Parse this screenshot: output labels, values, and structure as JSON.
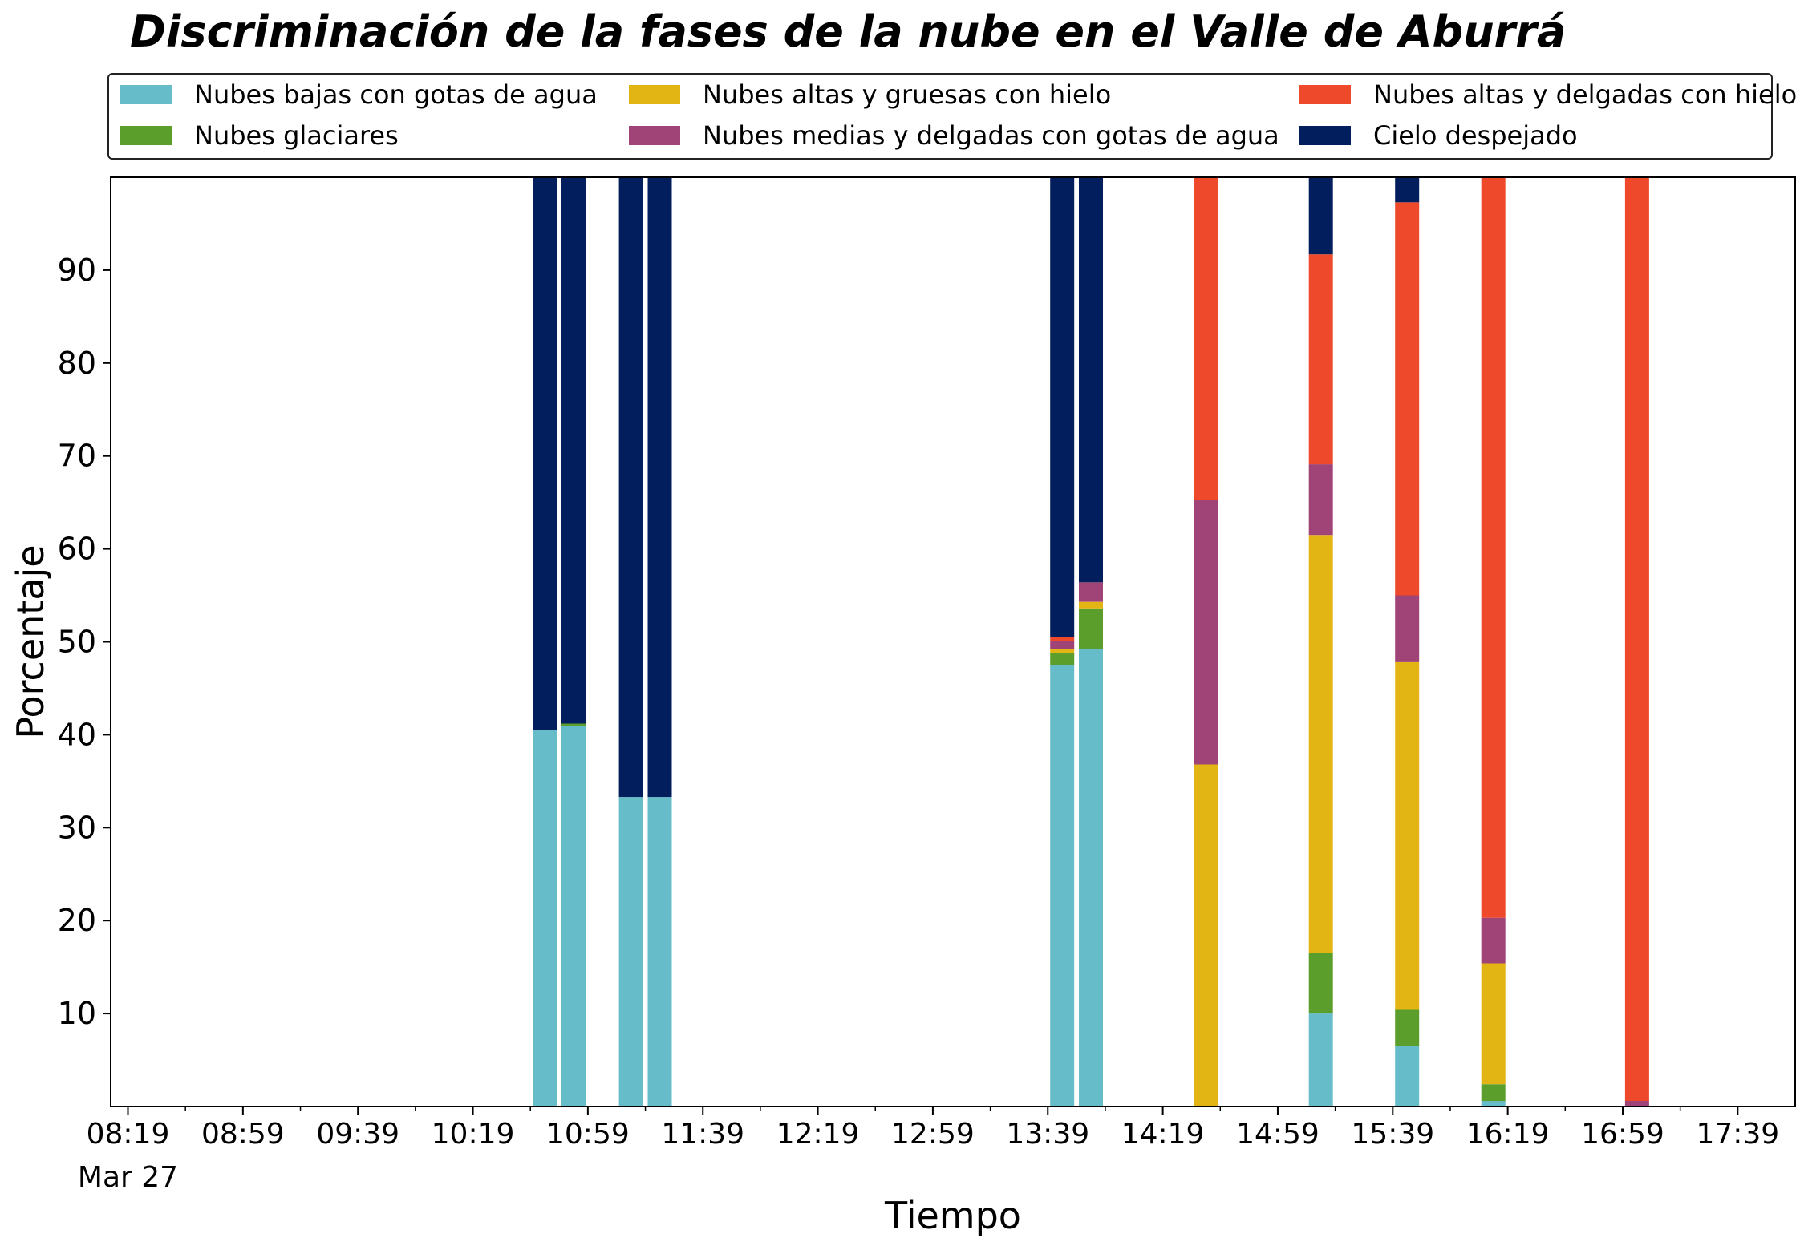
{
  "chart_data": {
    "type": "bar",
    "stacked": true,
    "title": "Discriminación de la fases de la nube en el Valle de Aburrá",
    "xlabel": "Tiempo",
    "ylabel": "Porcentaje",
    "ylim": [
      0,
      100
    ],
    "yticks": [
      10,
      20,
      30,
      40,
      50,
      60,
      70,
      80,
      90
    ],
    "xlim": [
      "08:13",
      "17:59"
    ],
    "xticks": [
      "08:19",
      "08:59",
      "09:39",
      "10:19",
      "10:59",
      "11:39",
      "12:19",
      "12:59",
      "13:39",
      "14:19",
      "14:59",
      "15:39",
      "16:19",
      "16:59",
      "17:39"
    ],
    "xtick_date_label": "Mar 27",
    "grid": false,
    "legend_position": "top",
    "categories": [
      "10:44",
      "10:54",
      "11:14",
      "11:24",
      "13:44",
      "13:54",
      "14:34",
      "15:14",
      "15:44",
      "16:14",
      "17:04"
    ],
    "series": [
      {
        "name": "Nubes bajas con gotas de agua",
        "color": "#66BDC9",
        "values": [
          40.5,
          40.9,
          33.3,
          33.3,
          47.5,
          49.2,
          0,
          10.0,
          6.5,
          0.6,
          0
        ]
      },
      {
        "name": "Nubes glaciares",
        "color": "#5C9E2B",
        "values": [
          0,
          0.3,
          0,
          0,
          1.3,
          4.4,
          0,
          6.5,
          3.9,
          1.8,
          0
        ]
      },
      {
        "name": "Nubes altas y gruesas con hielo",
        "color": "#E3B514",
        "values": [
          0,
          0,
          0,
          0,
          0.4,
          0.7,
          36.8,
          45.0,
          37.4,
          13.0,
          0
        ]
      },
      {
        "name": "Nubes medias y delgadas con gotas de agua",
        "color": "#A04377",
        "values": [
          0,
          0,
          0,
          0,
          0.9,
          2.1,
          28.5,
          7.6,
          7.2,
          4.9,
          0.6
        ]
      },
      {
        "name": "Nubes altas y delgadas con hielo",
        "color": "#EE492B",
        "values": [
          0,
          0,
          0,
          0,
          0.4,
          0,
          34.7,
          22.6,
          42.3,
          79.7,
          99.4
        ]
      },
      {
        "name": "Cielo despejado",
        "color": "#031E5C",
        "values": [
          59.5,
          58.8,
          66.7,
          66.7,
          49.5,
          43.6,
          0,
          8.3,
          2.7,
          0,
          0
        ]
      }
    ]
  }
}
